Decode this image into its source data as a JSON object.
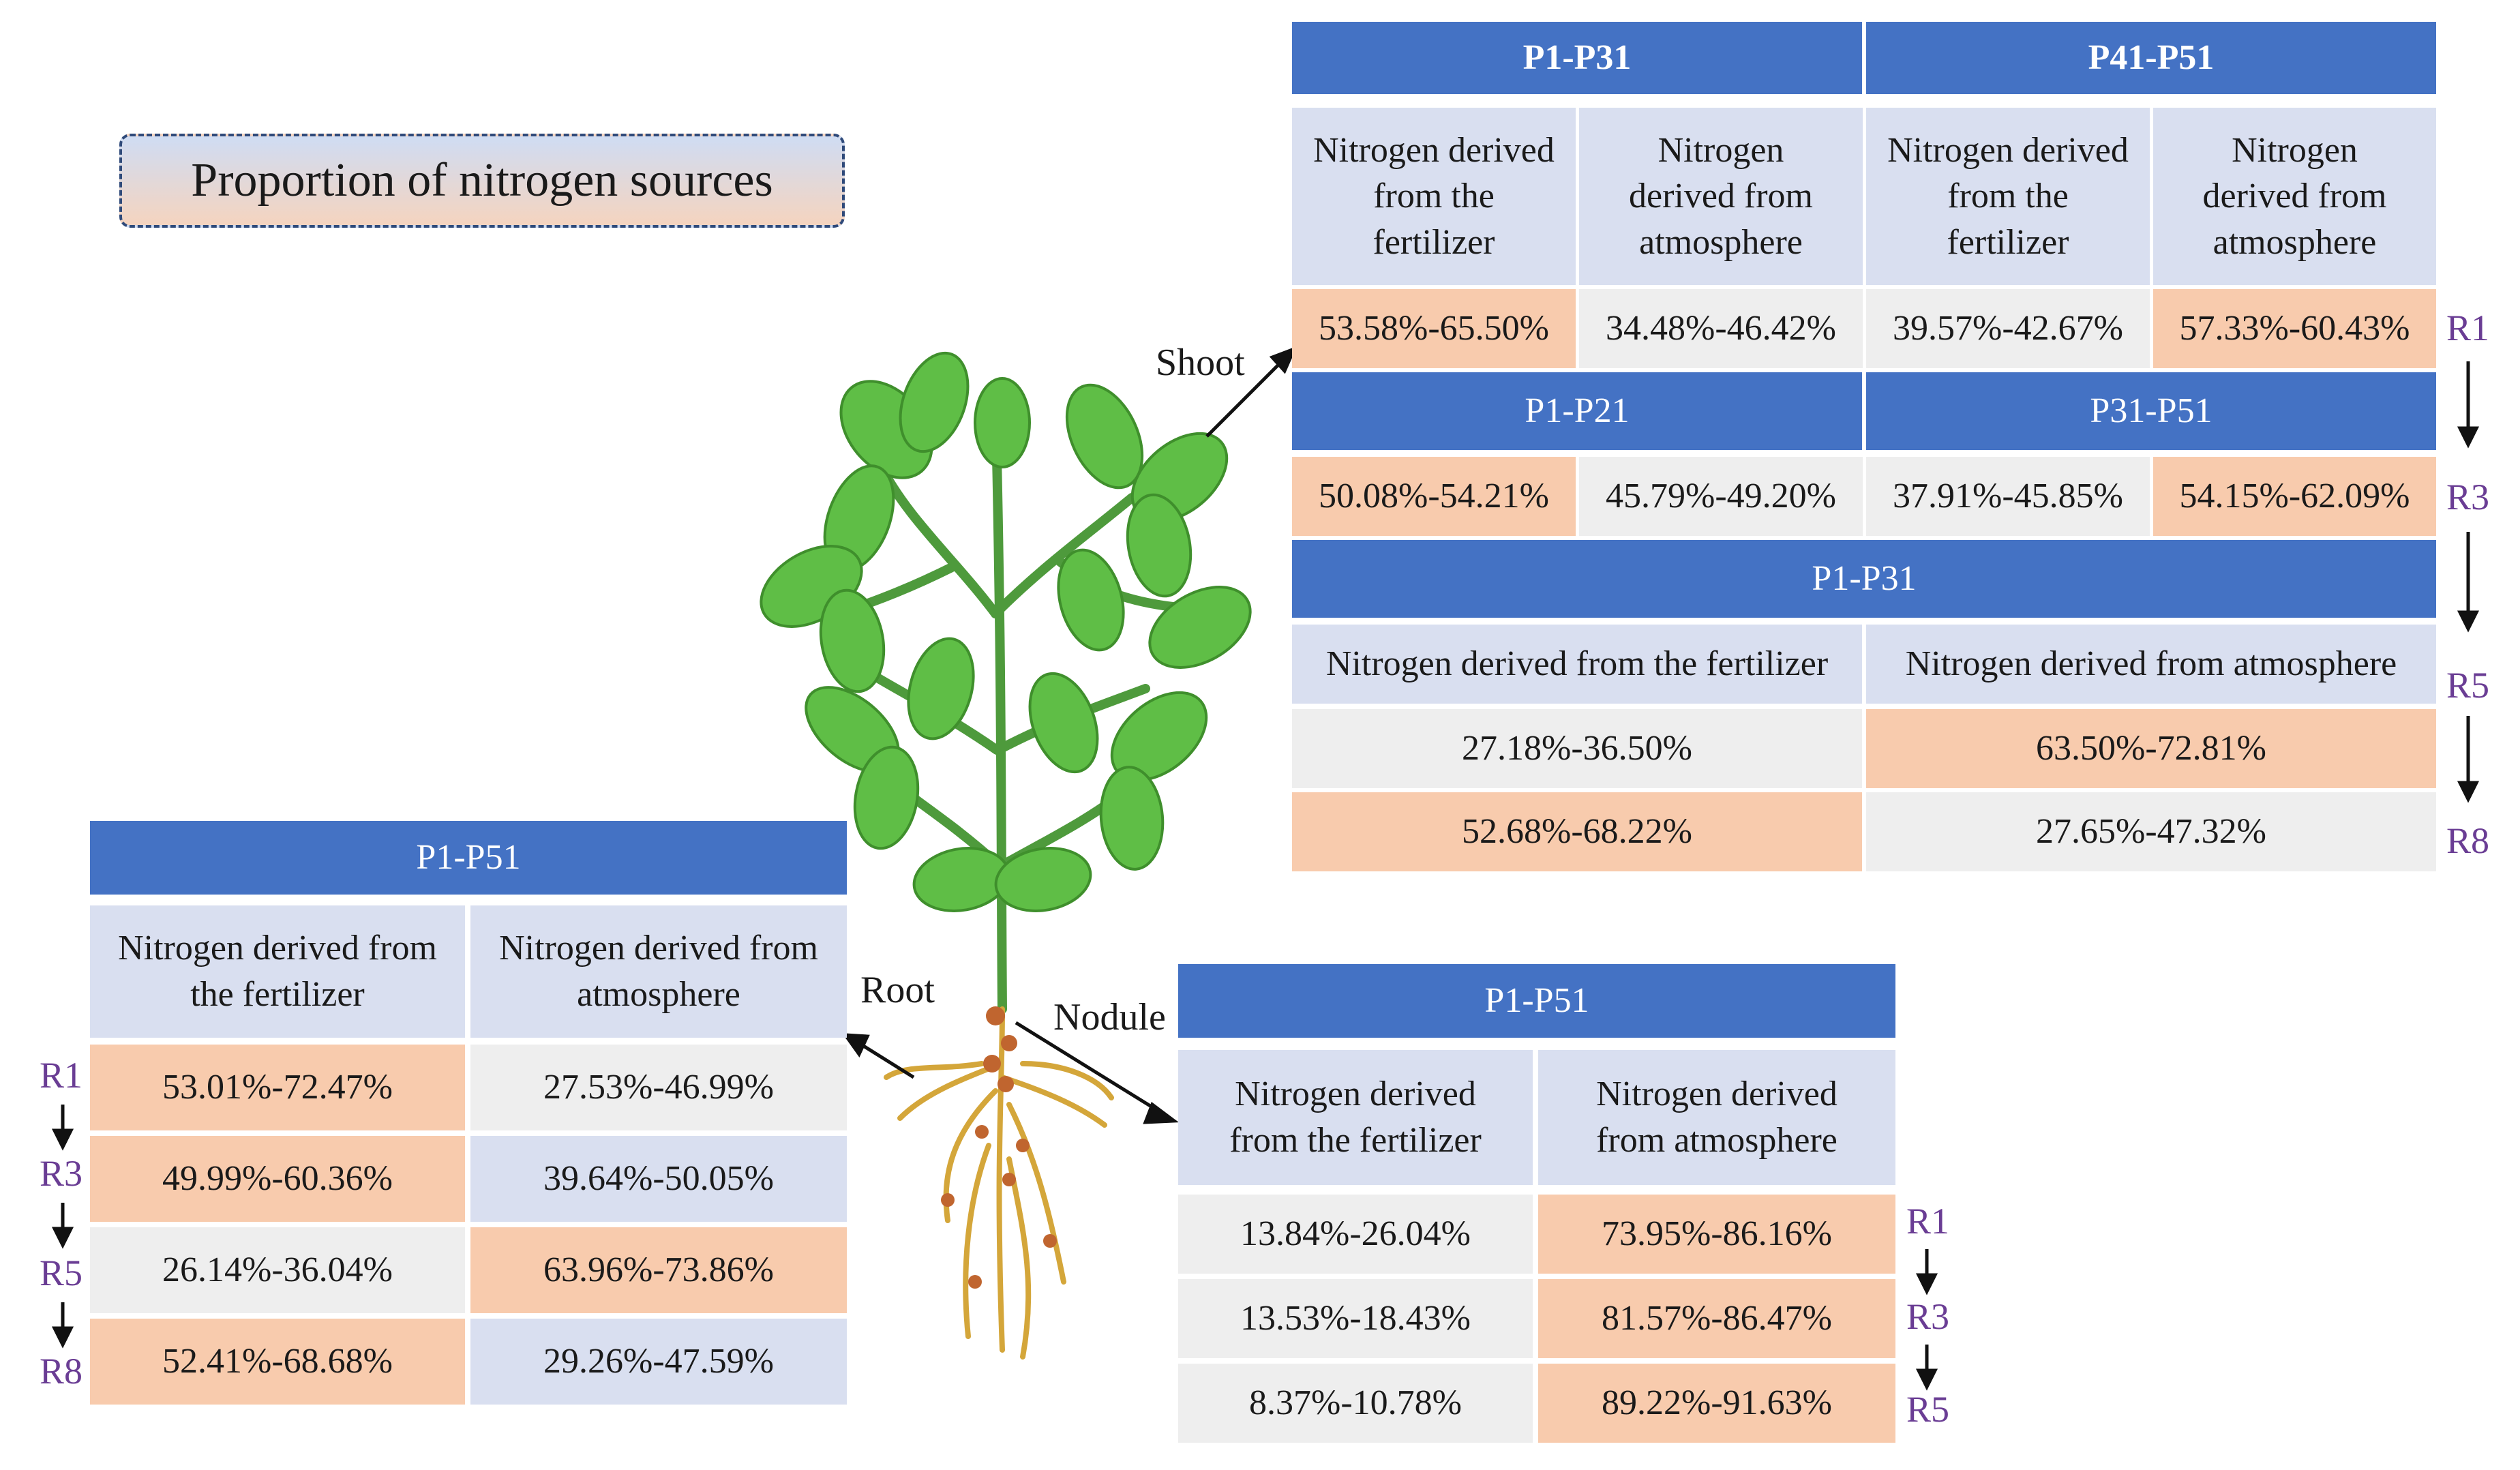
{
  "title": "Proportion of nitrogen sources",
  "labels": {
    "shoot": "Shoot",
    "root": "Root",
    "nodule": "Nodule"
  },
  "col_fert": "Nitrogen derived from the fertilizer",
  "col_atm": "Nitrogen derived from atmosphere",
  "shoot": {
    "h1": "P1-P31",
    "h2": "P41-P51",
    "sub": [
      "Nitrogen derived from the fertilizer",
      "Nitrogen derived from atmosphere",
      "Nitrogen derived from the fertilizer",
      "Nitrogen derived from atmosphere"
    ],
    "r1": [
      "53.58%-65.50%",
      "34.48%-46.42%",
      "39.57%-42.67%",
      "57.33%-60.43%"
    ],
    "h3": "P1-P21",
    "h4": "P31-P51",
    "r3": [
      "50.08%-54.21%",
      "45.79%-49.20%",
      "37.91%-45.85%",
      "54.15%-62.09%"
    ],
    "h5": "P1-P31",
    "sub2": [
      "Nitrogen derived from the fertilizer",
      "Nitrogen derived from atmosphere"
    ],
    "r5": [
      "27.18%-36.50%",
      "63.50%-72.81%"
    ],
    "r8": [
      "52.68%-68.22%",
      "27.65%-47.32%"
    ],
    "stages": [
      "R1",
      "R3",
      "R5",
      "R8"
    ]
  },
  "root": {
    "header": "P1-P51",
    "sub": [
      "Nitrogen derived from the fertilizer",
      "Nitrogen derived from atmosphere"
    ],
    "rows": [
      [
        "53.01%-72.47%",
        "27.53%-46.99%"
      ],
      [
        "49.99%-60.36%",
        "39.64%-50.05%"
      ],
      [
        "26.14%-36.04%",
        "63.96%-73.86%"
      ],
      [
        "52.41%-68.68%",
        "29.26%-47.59%"
      ]
    ],
    "stages": [
      "R1",
      "R3",
      "R5",
      "R8"
    ]
  },
  "nodule": {
    "header": "P1-P51",
    "sub": [
      "Nitrogen derived from the fertilizer",
      "Nitrogen derived from atmosphere"
    ],
    "rows": [
      [
        "13.84%-26.04%",
        "73.95%-86.16%"
      ],
      [
        "13.53%-18.43%",
        "81.57%-86.47%"
      ],
      [
        "8.37%-10.78%",
        "89.22%-91.63%"
      ]
    ],
    "stages": [
      "R1",
      "R3",
      "R5"
    ]
  },
  "colors": {
    "header": "#4472c4",
    "subheader": "#d9dff0",
    "highlight": "#f8cbad",
    "neutral": "#eeeeee",
    "stage": "#6a3d94"
  }
}
